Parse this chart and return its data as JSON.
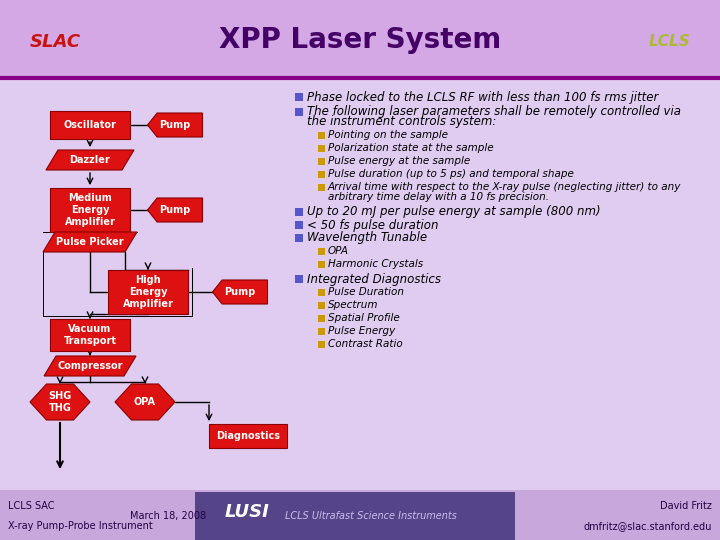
{
  "title": "XPP Laser System",
  "bg_top": "#d8b8e8",
  "bg_bottom": "#e8d0f0",
  "bg_color": "#dfc8ea",
  "header_line_color": "#880088",
  "title_color": "#440066",
  "title_fontsize": 20,
  "bullet_color": "#5555cc",
  "sub_bullet_color": "#cc9900",
  "box_fill": "#dd1111",
  "box_text": "#ffffff",
  "box_outline": "#880000",
  "line_color": "#000000",
  "arrow_color": "#cc1111",
  "footer_bg": "#c8a8dc",
  "footer_lusi_bg": "#554488",
  "footer_text_color": "#220044",
  "footer_lusi_color": "#ffffff",
  "footer_lusi_sub_color": "#ccbbee",
  "main_bullet_1": "Phase locked to the LCLS RF with less than 100 fs rms jitter",
  "main_bullet_2a": "The following laser parameters shall be remotely controlled via",
  "main_bullet_2b": "the instrument controls system:",
  "sub_bullets_1": [
    "Pointing on the sample",
    "Polarization state at the sample",
    "Pulse energy at the sample",
    "Pulse duration (up to 5 ps) and temporal shape",
    "Arrival time with respect to the X-ray pulse (neglecting jitter) to any",
    "arbitrary time delay with a 10 fs precision."
  ],
  "main_bullet_3": "Up to 20 mJ per pulse energy at sample (800 nm)",
  "main_bullet_4": "< 50 fs pulse duration",
  "main_bullet_5": "Wavelength Tunable",
  "sub_bullets_2": [
    "OPA",
    "Harmonic Crystals"
  ],
  "main_bullet_6": "Integrated Diagnostics",
  "sub_bullets_3": [
    "Pulse Duration",
    "Spectrum",
    "Spatial Profile",
    "Pulse Energy",
    "Contrast Ratio"
  ],
  "footer_left1": "LCLS SAC",
  "footer_left2": "X-ray Pump-Probe Instrument",
  "footer_date": "March 18, 2008",
  "footer_lusi": "LUSI",
  "footer_lusi_sub": "LCLS Ultrafast Science Instruments",
  "footer_right1": "David Fritz",
  "footer_right2": "dmfritz@slac.stanford.edu"
}
